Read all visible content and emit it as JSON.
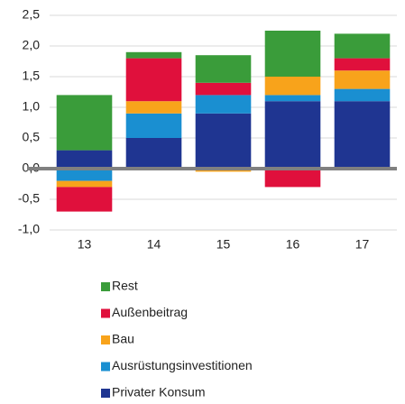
{
  "chart_data": {
    "type": "stacked_bar",
    "categories": [
      "13",
      "14",
      "15",
      "16",
      "17"
    ],
    "series": [
      {
        "name": "Privater Konsum",
        "color": "#1f3591",
        "values": [
          0.3,
          0.5,
          0.9,
          1.1,
          1.1
        ]
      },
      {
        "name": "Ausrüstungsinvestitionen",
        "color": "#1a8fd1",
        "values": [
          -0.2,
          0.4,
          0.3,
          0.1,
          0.2
        ]
      },
      {
        "name": "Bau",
        "color": "#f8a31b",
        "values": [
          -0.1,
          0.2,
          -0.05,
          0.3,
          0.3
        ]
      },
      {
        "name": "Außenbeitrag",
        "color": "#e0103c",
        "values": [
          -0.4,
          0.7,
          0.2,
          -0.3,
          0.2
        ]
      },
      {
        "name": "Rest",
        "color": "#3a9c3a",
        "values": [
          0.9,
          0.1,
          0.45,
          0.75,
          0.4
        ]
      }
    ],
    "ylim": [
      -1,
      2.5
    ],
    "yticks": [
      {
        "value": -1,
        "label": "-1,0"
      },
      {
        "value": -0.5,
        "label": "-0,5"
      },
      {
        "value": 0,
        "label": "0,0"
      },
      {
        "value": 0.5,
        "label": "0,5"
      },
      {
        "value": 1,
        "label": "1,0"
      },
      {
        "value": 1.5,
        "label": "1,5"
      },
      {
        "value": 2,
        "label": "2,0"
      },
      {
        "value": 2.5,
        "label": "2,5"
      }
    ],
    "grid": true
  }
}
